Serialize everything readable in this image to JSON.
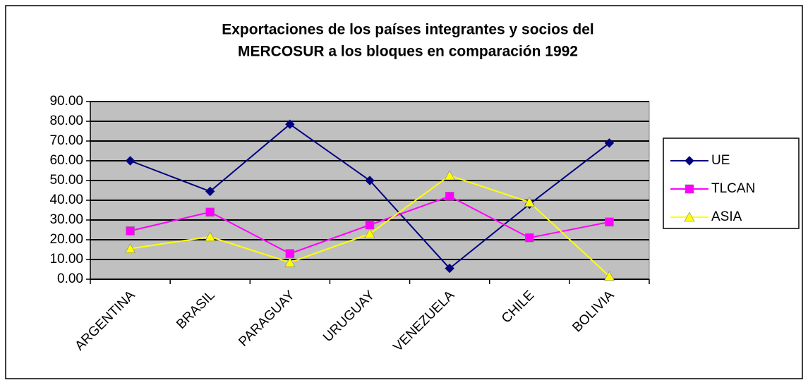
{
  "chart_data": {
    "type": "line",
    "title": [
      "Exportaciones de los países integrantes y socios del",
      "MERCOSUR a los bloques en comparación 1992"
    ],
    "categories": [
      "ARGENTINA",
      "BRASIL",
      "PARAGUAY",
      "URUGUAY",
      "VENEZUELA",
      "CHILE",
      "BOLIVIA"
    ],
    "series": [
      {
        "name": "UE",
        "color": "#000080",
        "marker": "diamond",
        "values": [
          60,
          44.5,
          78.5,
          50,
          5.5,
          38,
          69
        ]
      },
      {
        "name": "TLCAN",
        "color": "#ff00ff",
        "marker": "square",
        "values": [
          24.5,
          34,
          13,
          27.5,
          42,
          21,
          29
        ]
      },
      {
        "name": "ASIA",
        "color": "#ffff00",
        "marker": "triangle",
        "values": [
          15.5,
          21.5,
          8.5,
          23,
          52.5,
          39,
          1.5
        ]
      }
    ],
    "ylim": [
      0,
      90
    ],
    "yticks": [
      {
        "value": 0,
        "label": "0.00"
      },
      {
        "value": 10,
        "label": "10.00"
      },
      {
        "value": 20,
        "label": "20.00"
      },
      {
        "value": 30,
        "label": "30.00"
      },
      {
        "value": 40,
        "label": "40.00"
      },
      {
        "value": 50,
        "label": "50.00"
      },
      {
        "value": 60,
        "label": "60.00"
      },
      {
        "value": 70,
        "label": "70.00"
      },
      {
        "value": 80,
        "label": "80.00"
      },
      {
        "value": 90,
        "label": "90.00"
      }
    ],
    "grid": true,
    "plot_background": "#c0c0c0",
    "legend": "right"
  }
}
